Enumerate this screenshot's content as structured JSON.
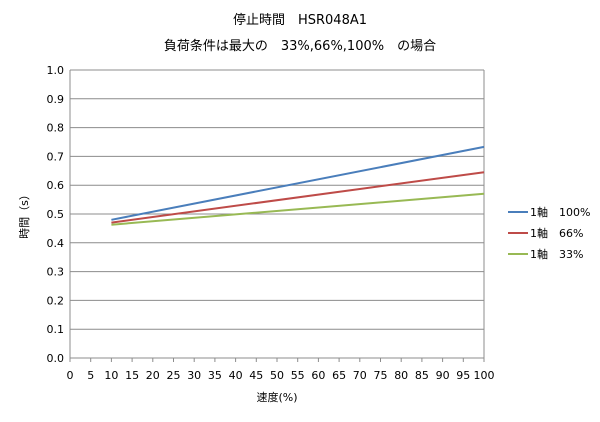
{
  "chart_data": {
    "type": "line",
    "title": "停止時間　HSR048A1",
    "subtitle": "負荷条件は最大の　33%,66%,100%　の場合",
    "xlabel": "速度(%)",
    "ylabel": "時間（s）",
    "x_ticks": [
      "0",
      "5",
      "10",
      "15",
      "20",
      "25",
      "30",
      "35",
      "40",
      "45",
      "50",
      "55",
      "60",
      "65",
      "70",
      "75",
      "80",
      "85",
      "90",
      "95",
      "100"
    ],
    "y_ticks": [
      "0.0",
      "0.1",
      "0.2",
      "0.3",
      "0.4",
      "0.5",
      "0.6",
      "0.7",
      "0.8",
      "0.9",
      "1.0"
    ],
    "xlim": [
      0,
      100
    ],
    "ylim": [
      0,
      1.0
    ],
    "grid": true,
    "legend_position": "right",
    "x": [
      10,
      100
    ],
    "series": [
      {
        "name": "1軸　100%",
        "color": "#4a7ebb",
        "values": [
          0.48,
          0.733
        ]
      },
      {
        "name": "1軸　66%",
        "color": "#be4b48",
        "values": [
          0.47,
          0.645
        ]
      },
      {
        "name": "1軸　33%",
        "color": "#98b954",
        "values": [
          0.463,
          0.57
        ]
      }
    ]
  }
}
